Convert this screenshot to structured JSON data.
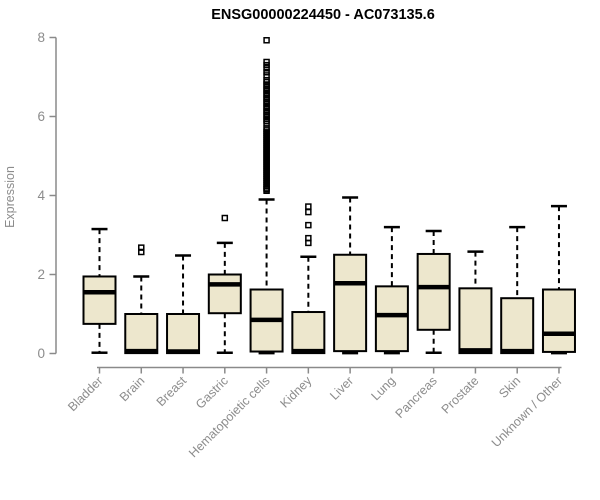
{
  "chart_data": {
    "type": "boxplot",
    "title": "ENSG00000224450 - AC073135.6",
    "ylabel": "Expression",
    "xlabel": "",
    "ylim": [
      0,
      8
    ],
    "yticks": [
      0,
      2,
      4,
      6,
      8
    ],
    "grid": false,
    "legend_position": "none",
    "box_stats_format": "[whisker_low, q1, median, q3, whisker_high] in Expression units",
    "categories": [
      "Bladder",
      "Brain",
      "Breast",
      "Gastric",
      "Hematopoietic cells",
      "Kidney",
      "Liver",
      "Lung",
      "Pancreas",
      "Prostate",
      "Skin",
      "Unknown / Other"
    ],
    "series": [
      {
        "name": "Bladder",
        "whisker_low": 0.02,
        "q1": 0.75,
        "median": 1.55,
        "q3": 1.95,
        "whisker_high": 3.15,
        "outliers": []
      },
      {
        "name": "Brain",
        "whisker_low": 0.01,
        "q1": 0.01,
        "median": 0.06,
        "q3": 1.0,
        "whisker_high": 1.95,
        "outliers": [
          2.57,
          2.68
        ]
      },
      {
        "name": "Breast",
        "whisker_low": 0.01,
        "q1": 0.01,
        "median": 0.05,
        "q3": 1.0,
        "whisker_high": 2.48,
        "outliers": []
      },
      {
        "name": "Gastric",
        "whisker_low": 0.02,
        "q1": 1.02,
        "median": 1.75,
        "q3": 2.0,
        "whisker_high": 2.8,
        "outliers": [
          3.43
        ]
      },
      {
        "name": "Hematopoietic cells",
        "whisker_low": 0.01,
        "q1": 0.05,
        "median": 0.85,
        "q3": 1.62,
        "whisker_high": 3.9,
        "outliers": [
          7.93,
          7.38,
          7.3,
          7.22,
          7.12,
          7.04,
          6.92,
          6.87,
          6.81,
          6.76,
          6.7,
          6.65,
          6.59,
          6.54,
          6.48,
          6.43,
          6.37,
          6.32,
          6.26,
          6.21,
          6.15,
          6.1,
          6.04,
          5.99,
          5.93,
          5.88,
          5.82,
          5.7,
          5.65,
          5.6,
          5.55,
          5.5,
          5.45,
          5.4,
          5.35,
          5.3,
          5.25,
          5.2,
          5.15,
          5.1,
          5.05,
          5.0,
          4.95,
          4.9,
          4.85,
          4.8,
          4.75,
          4.7,
          4.65,
          4.6,
          4.55,
          4.5,
          4.45,
          4.4,
          4.35,
          4.3,
          4.25,
          4.2,
          4.16,
          4.12
        ]
      },
      {
        "name": "Kidney",
        "whisker_low": 0.01,
        "q1": 0.01,
        "median": 0.06,
        "q3": 1.05,
        "whisker_high": 2.45,
        "outliers": [
          2.8,
          2.92,
          3.25,
          3.58,
          3.72
        ]
      },
      {
        "name": "Liver",
        "whisker_low": 0.01,
        "q1": 0.06,
        "median": 1.78,
        "q3": 2.5,
        "whisker_high": 3.95,
        "outliers": []
      },
      {
        "name": "Lung",
        "whisker_low": 0.01,
        "q1": 0.06,
        "median": 0.97,
        "q3": 1.7,
        "whisker_high": 3.2,
        "outliers": []
      },
      {
        "name": "Pancreas",
        "whisker_low": 0.02,
        "q1": 0.6,
        "median": 1.68,
        "q3": 2.52,
        "whisker_high": 3.1,
        "outliers": []
      },
      {
        "name": "Prostate",
        "whisker_low": 0.01,
        "q1": 0.01,
        "median": 0.08,
        "q3": 1.65,
        "whisker_high": 2.58,
        "outliers": []
      },
      {
        "name": "Skin",
        "whisker_low": 0.01,
        "q1": 0.01,
        "median": 0.06,
        "q3": 1.4,
        "whisker_high": 3.2,
        "outliers": []
      },
      {
        "name": "Unknown / Other",
        "whisker_low": 0.01,
        "q1": 0.04,
        "median": 0.5,
        "q3": 1.62,
        "whisker_high": 3.73,
        "outliers": []
      }
    ],
    "colors": {
      "box_fill": "#ede7cd",
      "box_border": "#000000",
      "median": "#000000",
      "whisker": "#000000",
      "outlier": "#000000",
      "axis": "#8a8a8a",
      "tick_label": "#8c8c8c",
      "title": "#000000",
      "background": "#ffffff"
    }
  }
}
